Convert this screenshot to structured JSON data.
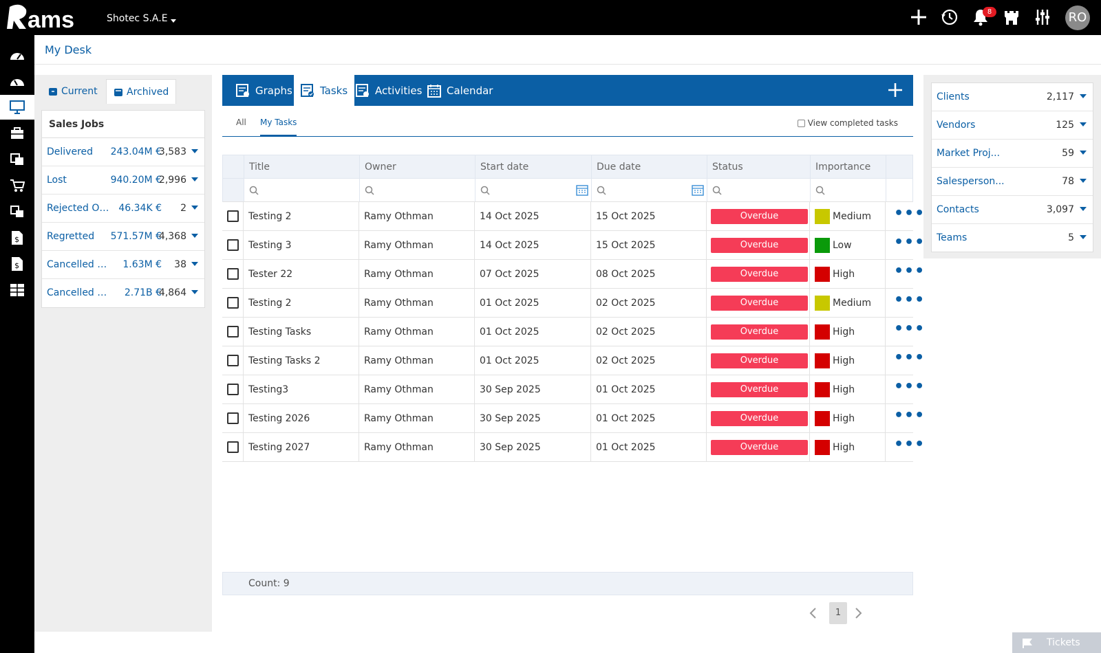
{
  "app": {
    "logo_text": "Rams",
    "company": "Shotec S.A.E",
    "notifications_count": "8",
    "avatar_initials": "RO"
  },
  "page": {
    "title": "My Desk"
  },
  "left_panel": {
    "tabs": [
      {
        "label": "Current"
      },
      {
        "label": "Archived"
      }
    ],
    "section_title": "Sales Jobs",
    "rows": [
      {
        "name": "Delivered",
        "amount": "243.04M €",
        "count": "3,583"
      },
      {
        "name": "Lost",
        "amount": "940.20M €",
        "count": "2,996"
      },
      {
        "name": "Rejected Or...",
        "amount": "46.34K €",
        "count": "2"
      },
      {
        "name": "Regretted",
        "amount": "571.57M €",
        "count": "4,368"
      },
      {
        "name": "Cancelled O...",
        "amount": "1.63M €",
        "count": "38"
      },
      {
        "name": "Cancelled R...",
        "amount": "2.71B €",
        "count": "4,864"
      }
    ]
  },
  "main": {
    "tabs": [
      {
        "label": "Graphs"
      },
      {
        "label": "Tasks"
      },
      {
        "label": "Activities"
      },
      {
        "label": "Calendar"
      }
    ],
    "subtabs": [
      {
        "label": "All"
      },
      {
        "label": "My Tasks"
      }
    ],
    "view_completed_label": "View completed tasks",
    "columns": [
      {
        "label": "Title"
      },
      {
        "label": "Owner"
      },
      {
        "label": "Start date"
      },
      {
        "label": "Due date"
      },
      {
        "label": "Status"
      },
      {
        "label": "Importance"
      }
    ],
    "tasks": [
      {
        "title": "Testing 2",
        "owner": "Ramy Othman",
        "start": "14 Oct 2025",
        "due": "15 Oct 2025",
        "status": "Overdue",
        "importance": "Medium",
        "importance_color": "#c8c800"
      },
      {
        "title": "Testing 3",
        "owner": "Ramy Othman",
        "start": "14 Oct 2025",
        "due": "15 Oct 2025",
        "status": "Overdue",
        "importance": "Low",
        "importance_color": "#0a9a0a"
      },
      {
        "title": "Tester 22",
        "owner": "Ramy Othman",
        "start": "07 Oct 2025",
        "due": "08 Oct 2025",
        "status": "Overdue",
        "importance": "High",
        "importance_color": "#d40000"
      },
      {
        "title": "Testing 2",
        "owner": "Ramy Othman",
        "start": "01 Oct 2025",
        "due": "02 Oct 2025",
        "status": "Overdue",
        "importance": "Medium",
        "importance_color": "#c8c800"
      },
      {
        "title": "Testing Tasks",
        "owner": "Ramy Othman",
        "start": "01 Oct 2025",
        "due": "02 Oct 2025",
        "status": "Overdue",
        "importance": "High",
        "importance_color": "#d40000"
      },
      {
        "title": "Testing Tasks 2",
        "owner": "Ramy Othman",
        "start": "01 Oct 2025",
        "due": "02 Oct 2025",
        "status": "Overdue",
        "importance": "High",
        "importance_color": "#d40000"
      },
      {
        "title": "Testing3",
        "owner": "Ramy Othman",
        "start": "30 Sep 2025",
        "due": "01 Oct 2025",
        "status": "Overdue",
        "importance": "High",
        "importance_color": "#d40000"
      },
      {
        "title": "Testing 2026",
        "owner": "Ramy Othman",
        "start": "30 Sep 2025",
        "due": "01 Oct 2025",
        "status": "Overdue",
        "importance": "High",
        "importance_color": "#d40000"
      },
      {
        "title": "Testing 2027",
        "owner": "Ramy Othman",
        "start": "30 Sep 2025",
        "due": "01 Oct 2025",
        "status": "Overdue",
        "importance": "High",
        "importance_color": "#d40000"
      }
    ],
    "count_label": "Count: 9",
    "current_page": "1"
  },
  "right_panel": {
    "rows": [
      {
        "name": "Clients",
        "value": "2,117"
      },
      {
        "name": "Vendors",
        "value": "125"
      },
      {
        "name": "Market Proj...",
        "value": "59"
      },
      {
        "name": "Salesperson...",
        "value": "78"
      },
      {
        "name": "Contacts",
        "value": "3,097"
      },
      {
        "name": "Teams",
        "value": "5"
      }
    ]
  },
  "tickets": {
    "label": "Tickets"
  },
  "colors": {
    "brand_blue": "#0b5fa5",
    "overdue": "#f53c57"
  }
}
